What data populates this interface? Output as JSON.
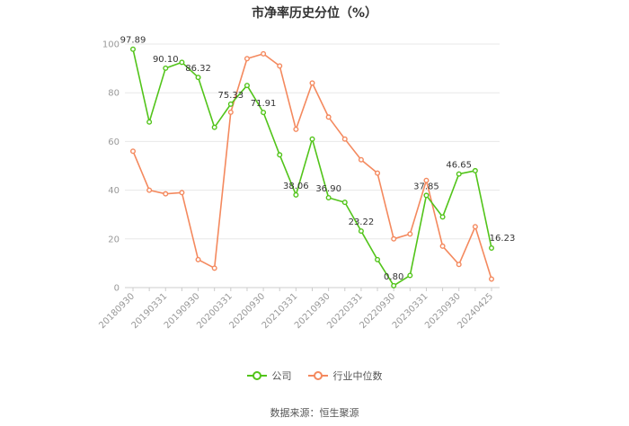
{
  "chart_data": {
    "type": "line",
    "title": "市净率历史分位（%）",
    "x_ticks": [
      "20180930",
      "20190331",
      "20190930",
      "20200331",
      "20200930",
      "20210331",
      "20210930",
      "20220331",
      "20220930",
      "20230331",
      "20230930",
      "20240425"
    ],
    "ylim": [
      0,
      100
    ],
    "yticks": [
      0,
      20,
      40,
      60,
      80,
      100
    ],
    "grid": true,
    "legend_position": "bottom",
    "series": [
      {
        "name": "公司",
        "color": "#52c41a",
        "values": [
          97.89,
          68.0,
          90.1,
          92.5,
          86.32,
          65.8,
          75.33,
          83.0,
          71.91,
          54.5,
          38.06,
          61.0,
          36.9,
          35.0,
          23.22,
          11.5,
          0.8,
          5.0,
          37.85,
          29.0,
          46.65,
          48.0,
          16.23
        ],
        "labels": {
          "0": "97.89",
          "2": "90.10",
          "4": "86.32",
          "6": "75.33",
          "8": "71.91",
          "10": "38.06",
          "12": "36.90",
          "14": "23.22",
          "16": "0.80",
          "18": "37.85",
          "20": "46.65",
          "22": "16.23"
        }
      },
      {
        "name": "行业中位数",
        "color": "#f4895e",
        "values": [
          56.0,
          40.0,
          38.5,
          39.0,
          11.5,
          8.0,
          72.0,
          94.0,
          96.0,
          91.0,
          65.0,
          84.0,
          70.0,
          61.0,
          52.5,
          47.0,
          20.0,
          22.0,
          44.0,
          17.0,
          9.5,
          25.0,
          3.5
        ]
      }
    ]
  },
  "legend": {
    "company": "公司",
    "industry": "行业中位数"
  },
  "source": "数据来源：恒生聚源"
}
